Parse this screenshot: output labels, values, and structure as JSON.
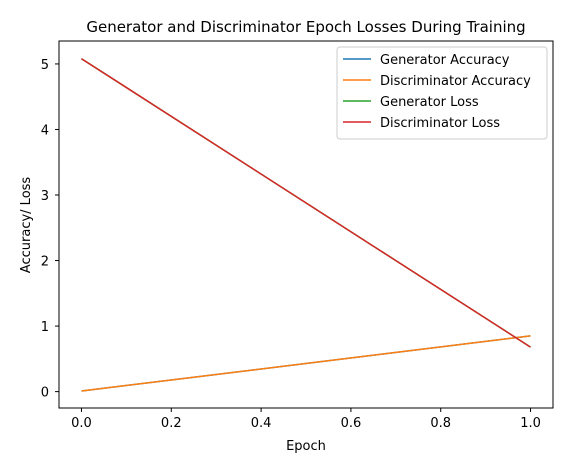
{
  "chart_data": {
    "type": "line",
    "title": "Generator and Discriminator Epoch Losses During Training",
    "xlabel": "Epoch",
    "ylabel": "Accuracy/ Loss",
    "xlim": [
      -0.05,
      1.05
    ],
    "ylim": [
      -0.25,
      5.35
    ],
    "xticks": [
      "0.0",
      "0.2",
      "0.4",
      "0.6",
      "0.8",
      "1.0"
    ],
    "xtick_values": [
      0.0,
      0.2,
      0.4,
      0.6,
      0.8,
      1.0
    ],
    "yticks": [
      "0",
      "1",
      "2",
      "3",
      "4",
      "5"
    ],
    "ytick_values": [
      0,
      1,
      2,
      3,
      4,
      5
    ],
    "grid": false,
    "legend_position": "top-right",
    "x": [
      0,
      1
    ],
    "series": [
      {
        "name": "Generator Accuracy",
        "values": [
          0.01,
          0.85
        ],
        "color": "#1f77b4"
      },
      {
        "name": "Discriminator Accuracy",
        "values": [
          0.01,
          0.85
        ],
        "color": "#ff7f0e"
      },
      {
        "name": "Generator Loss",
        "values": [
          5.08,
          0.68
        ],
        "color": "#2ca02c"
      },
      {
        "name": "Discriminator Loss",
        "values": [
          5.08,
          0.68
        ],
        "color": "#d62728"
      }
    ]
  }
}
